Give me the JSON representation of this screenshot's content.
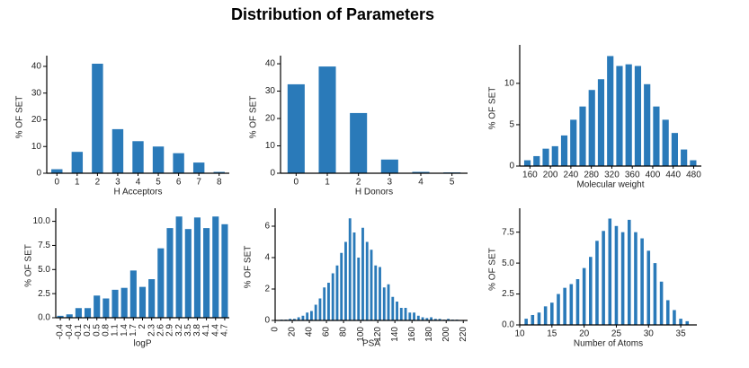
{
  "title": "Distribution of Parameters",
  "chart_data": [
    {
      "type": "bar",
      "x_label": "H Acceptors",
      "y_label": "% OF SET",
      "color": "#2a7ab9",
      "categories": [
        "0",
        "1",
        "2",
        "3",
        "4",
        "5",
        "6",
        "7",
        "8"
      ],
      "values": [
        1.5,
        8,
        41,
        16.5,
        12,
        10,
        7.5,
        4,
        0.5
      ],
      "ylim": [
        0,
        42
      ],
      "yticks": [
        0,
        10,
        20,
        30,
        40
      ]
    },
    {
      "type": "bar",
      "x_label": "H Donors",
      "y_label": "% OF SET",
      "color": "#2a7ab9",
      "categories": [
        "0",
        "1",
        "2",
        "3",
        "4",
        "5"
      ],
      "values": [
        32.5,
        39,
        22,
        5,
        0.5,
        0.3
      ],
      "ylim": [
        0,
        41
      ],
      "yticks": [
        0,
        10,
        20,
        30,
        40
      ]
    },
    {
      "type": "histogram",
      "x_label": "Molecular weight",
      "y_label": "% OF SET",
      "color": "#2a7ab9",
      "bins": [
        146,
        164,
        182,
        200,
        218,
        236,
        254,
        272,
        290,
        308,
        326,
        344,
        362,
        380,
        398,
        416,
        434,
        452,
        470,
        488
      ],
      "values": [
        0.7,
        1.2,
        2.1,
        2.4,
        3.7,
        5.6,
        7.2,
        9.2,
        10.5,
        13.3,
        12.1,
        12.3,
        12.1,
        9.9,
        7.2,
        5.6,
        4.0,
        2.0,
        0.7
      ],
      "xlim": [
        140,
        495
      ],
      "xticks": [
        160,
        200,
        240,
        280,
        320,
        360,
        400,
        440,
        480
      ],
      "ylim": [
        0,
        14
      ],
      "yticks": [
        0,
        5,
        10
      ]
    },
    {
      "type": "bar",
      "x_label": "logP",
      "y_label": "% OF SET",
      "color": "#2a7ab9",
      "categories": [
        "-0.4",
        "-0.4",
        "-0.1",
        "0.2",
        "0.5",
        "0.8",
        "1.1",
        "1.4",
        "1.7",
        "2",
        "2.3",
        "2.6",
        "2.9",
        "3.2",
        "3.5",
        "3.8",
        "4.1",
        "4.4",
        "4.7"
      ],
      "values": [
        0.2,
        0.35,
        1.0,
        1.0,
        2.3,
        2.0,
        2.9,
        3.1,
        4.9,
        3.2,
        4.0,
        7.2,
        9.3,
        10.5,
        9.2,
        10.4,
        9.3,
        10.5,
        9.7
      ],
      "ylim": [
        0,
        10.8
      ],
      "yticks": [
        {
          "value": 0,
          "label": "0.0"
        },
        2.5,
        {
          "value": 5,
          "label": "5.0"
        },
        7.5,
        {
          "value": 10,
          "label": "10.0"
        }
      ]
    },
    {
      "type": "histogram",
      "x_label": "PSA",
      "y_label": "% OF SET",
      "color": "#2a7ab9",
      "bins": [
        5,
        10,
        15,
        20,
        25,
        30,
        35,
        40,
        45,
        50,
        55,
        60,
        65,
        70,
        75,
        80,
        85,
        90,
        95,
        100,
        105,
        110,
        115,
        120,
        125,
        130,
        135,
        140,
        145,
        150,
        155,
        160,
        165,
        170,
        175,
        180,
        185,
        190,
        195,
        200,
        205,
        210,
        215
      ],
      "values": [
        0.05,
        0.05,
        0.1,
        0.1,
        0.2,
        0.3,
        0.5,
        0.6,
        1.0,
        1.4,
        2.1,
        2.4,
        3.0,
        3.5,
        4.3,
        5.0,
        6.5,
        5.6,
        4.0,
        5.9,
        5.0,
        4.5,
        3.5,
        3.4,
        2.1,
        2.3,
        1.5,
        1.2,
        0.8,
        0.8,
        0.5,
        0.5,
        0.3,
        0.2,
        0.15,
        0.2,
        0.1,
        0.1,
        0.05,
        0.1,
        0.05,
        0.05
      ],
      "xlim": [
        0,
        225
      ],
      "xticks": [
        0,
        20,
        40,
        60,
        80,
        100,
        120,
        140,
        160,
        180,
        200,
        220
      ],
      "ylim": [
        0,
        6.8
      ],
      "yticks": [
        0,
        2,
        4,
        6
      ]
    },
    {
      "type": "histogram",
      "x_label": "Number of Atoms",
      "y_label": "% OF SET",
      "color": "#2a7ab9",
      "bins": [
        10.5,
        11.5,
        12.5,
        13.5,
        14.5,
        15.5,
        16.5,
        17.5,
        18.5,
        19.5,
        20.5,
        21.5,
        22.5,
        23.5,
        24.5,
        25.5,
        26.5,
        27.5,
        28.5,
        29.5,
        30.5,
        31.5,
        32.5,
        33.5,
        34.5,
        35.5,
        36.5
      ],
      "values": [
        0.5,
        0.8,
        1.0,
        1.5,
        1.8,
        2.5,
        3.0,
        3.3,
        3.7,
        4.6,
        5.5,
        6.8,
        7.6,
        8.6,
        8.0,
        7.5,
        8.5,
        7.5,
        7.0,
        6.0,
        5.0,
        3.5,
        2.0,
        1.2,
        0.5,
        0.3
      ],
      "xlim": [
        10,
        37.5
      ],
      "xticks": [
        10,
        15,
        20,
        25,
        30,
        35
      ],
      "ylim": [
        0,
        9
      ],
      "yticks": [
        {
          "value": 0,
          "label": "0.0"
        },
        2.5,
        {
          "value": 5,
          "label": "5.0"
        },
        7.5
      ]
    }
  ]
}
